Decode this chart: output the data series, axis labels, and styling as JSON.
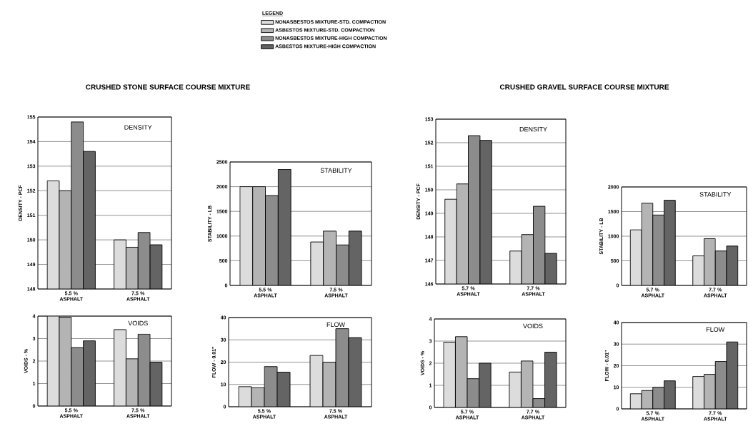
{
  "chart_data": [
    {
      "type": "bar",
      "title": "CRUSHED STONE SURFACE COURSE MIXTURE",
      "subtitle": "DENSITY",
      "ylabel": "DENSITY - PCF",
      "categories": [
        "5.5 % ASPHALT",
        "7.5 % ASPHALT"
      ],
      "legend": "top",
      "legend_title": "LEGEND",
      "grid": "y",
      "ylim": [
        148,
        155
      ],
      "yticks": [
        148,
        149,
        150,
        151,
        152,
        153,
        154,
        155
      ],
      "series": [
        {
          "name": "NONASBESTOS MIXTURE-STD. COMPACTION",
          "color": "#dcdcdc",
          "values": [
            152.4,
            150.0
          ]
        },
        {
          "name": "ASBESTOS MIXTURE-STD. COMPACTION",
          "color": "#b4b4b4",
          "values": [
            152.0,
            149.7
          ]
        },
        {
          "name": "NONASBESTOS MIXTURE-HIGH COMPACTION",
          "color": "#8c8c8c",
          "values": [
            154.8,
            150.3
          ]
        },
        {
          "name": "ASBESTOS MIXTURE-HIGH COMPACTION",
          "color": "#646464",
          "values": [
            153.6,
            149.8
          ]
        }
      ]
    },
    {
      "type": "bar",
      "subtitle": "STABILITY",
      "ylabel": "STABILITY - LB",
      "categories": [
        "5.5 % ASPHALT",
        "7.5 % ASPHALT"
      ],
      "grid": "y",
      "ylim": [
        0,
        2500
      ],
      "yticks": [
        0,
        500,
        1000,
        1500,
        2000,
        2500
      ],
      "series": [
        {
          "color": "#dcdcdc",
          "values": [
            2000,
            880
          ]
        },
        {
          "color": "#b4b4b4",
          "values": [
            2000,
            1100
          ]
        },
        {
          "color": "#8c8c8c",
          "values": [
            1820,
            820
          ]
        },
        {
          "color": "#646464",
          "values": [
            2350,
            1100
          ]
        }
      ]
    },
    {
      "type": "bar",
      "title": "CRUSHED GRAVEL SURFACE COURSE MIXTURE",
      "subtitle": "DENSITY",
      "ylabel": "DENSITY - PCF",
      "categories": [
        "5.7 % ASPHALT",
        "7.7 % ASPHALT"
      ],
      "grid": "y",
      "ylim": [
        146,
        153
      ],
      "yticks": [
        146,
        147,
        148,
        149,
        150,
        151,
        152,
        153
      ],
      "series": [
        {
          "color": "#dcdcdc",
          "values": [
            149.6,
            147.4
          ]
        },
        {
          "color": "#b4b4b4",
          "values": [
            150.25,
            148.1
          ]
        },
        {
          "color": "#8c8c8c",
          "values": [
            152.3,
            149.3
          ]
        },
        {
          "color": "#646464",
          "values": [
            152.1,
            147.3
          ]
        }
      ]
    },
    {
      "type": "bar",
      "subtitle": "STABILITY",
      "ylabel": "STABILITY - LB",
      "categories": [
        "5.7 % ASPHALT",
        "7.7 % ASPHALT"
      ],
      "grid": "y",
      "ylim": [
        0,
        2000
      ],
      "yticks": [
        0,
        500,
        1000,
        1500,
        2000
      ],
      "series": [
        {
          "color": "#dcdcdc",
          "values": [
            1130,
            600
          ]
        },
        {
          "color": "#b4b4b4",
          "values": [
            1670,
            950
          ]
        },
        {
          "color": "#8c8c8c",
          "values": [
            1430,
            700
          ]
        },
        {
          "color": "#646464",
          "values": [
            1730,
            800
          ]
        }
      ]
    },
    {
      "type": "bar",
      "subtitle": "VOIDS",
      "ylabel": "VOIDS - %",
      "categories": [
        "5.5 % ASPHALT",
        "7.5 % ASPHALT"
      ],
      "grid": "y",
      "ylim": [
        0,
        4
      ],
      "yticks": [
        0,
        1,
        2,
        3,
        4
      ],
      "series": [
        {
          "color": "#dcdcdc",
          "values": [
            4.0,
            3.4
          ]
        },
        {
          "color": "#b4b4b4",
          "values": [
            3.95,
            2.1
          ]
        },
        {
          "color": "#8c8c8c",
          "values": [
            2.6,
            3.2
          ]
        },
        {
          "color": "#646464",
          "values": [
            2.9,
            1.95
          ]
        }
      ]
    },
    {
      "type": "bar",
      "subtitle": "FLOW",
      "ylabel": "FLOW - 0.01\"",
      "categories": [
        "5.5 % ASPHALT",
        "7.5 % ASPHALT"
      ],
      "grid": "y",
      "ylim": [
        0,
        40
      ],
      "yticks": [
        0,
        10,
        20,
        30,
        40
      ],
      "series": [
        {
          "color": "#dcdcdc",
          "values": [
            9,
            23
          ]
        },
        {
          "color": "#b4b4b4",
          "values": [
            8.5,
            20
          ]
        },
        {
          "color": "#8c8c8c",
          "values": [
            18,
            35
          ]
        },
        {
          "color": "#646464",
          "values": [
            15.5,
            31
          ]
        }
      ]
    },
    {
      "type": "bar",
      "subtitle": "VOIDS",
      "ylabel": "VOIDS - %",
      "categories": [
        "5.7 % ASPHALT",
        "7.7 % ASPHALT"
      ],
      "grid": "y",
      "ylim": [
        0,
        4
      ],
      "yticks": [
        0,
        1,
        2,
        3,
        4
      ],
      "series": [
        {
          "color": "#dcdcdc",
          "values": [
            2.95,
            1.6
          ]
        },
        {
          "color": "#b4b4b4",
          "values": [
            3.2,
            2.1
          ]
        },
        {
          "color": "#8c8c8c",
          "values": [
            1.3,
            0.4
          ]
        },
        {
          "color": "#646464",
          "values": [
            2.0,
            2.5
          ]
        }
      ]
    },
    {
      "type": "bar",
      "subtitle": "FLOW",
      "ylabel": "FLOW - 0.01\"",
      "categories": [
        "5.7 % ASPHALT",
        "7.7 % ASPHALT"
      ],
      "grid": "y",
      "ylim": [
        0,
        40
      ],
      "yticks": [
        0,
        10,
        20,
        30,
        40
      ],
      "series": [
        {
          "color": "#dcdcdc",
          "values": [
            7,
            15
          ]
        },
        {
          "color": "#b4b4b4",
          "values": [
            8.5,
            16
          ]
        },
        {
          "color": "#8c8c8c",
          "values": [
            10,
            22
          ]
        },
        {
          "color": "#646464",
          "values": [
            13,
            31
          ]
        }
      ]
    }
  ]
}
